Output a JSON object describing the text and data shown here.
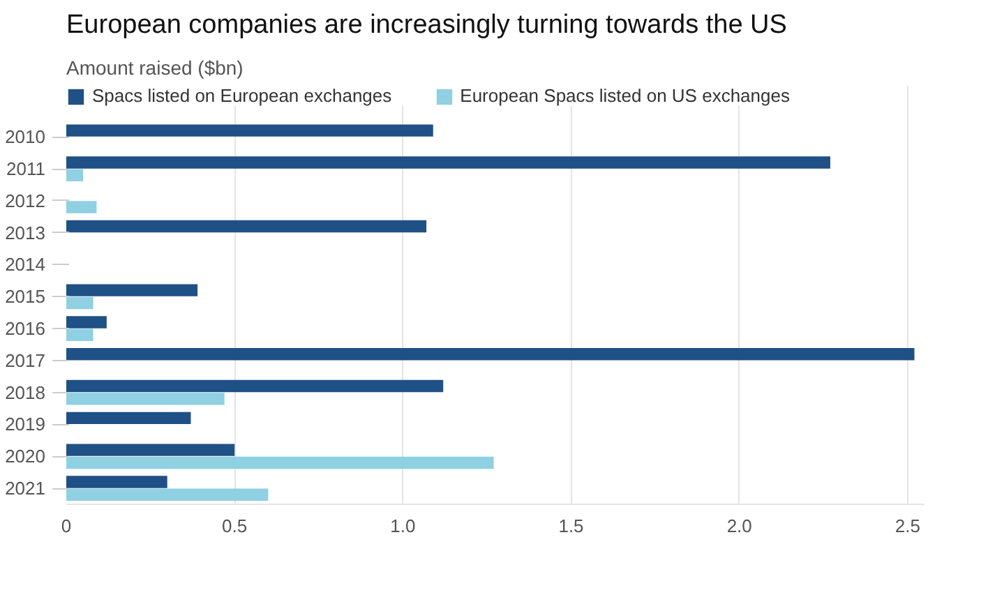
{
  "chart_data": {
    "type": "bar",
    "orientation": "horizontal",
    "title": "European companies are increasingly turning towards the US",
    "subtitle": "Amount raised ($bn)",
    "categories": [
      "2010",
      "2011",
      "2012",
      "2013",
      "2014",
      "2015",
      "2016",
      "2017",
      "2018",
      "2019",
      "2020",
      "2021"
    ],
    "series": [
      {
        "name": "Spacs listed on European exchanges",
        "color": "#1f5086",
        "values": [
          1.09,
          2.27,
          null,
          1.07,
          null,
          0.39,
          0.12,
          2.52,
          1.12,
          0.37,
          0.5,
          0.3
        ]
      },
      {
        "name": "European Spacs listed on US exchanges",
        "color": "#8fd0e3",
        "values": [
          null,
          0.05,
          0.09,
          null,
          null,
          0.08,
          0.08,
          null,
          0.47,
          null,
          1.27,
          0.6
        ]
      }
    ],
    "xlim": [
      0,
      2.55
    ],
    "xticks": [
      0,
      {
        "value": 0.5,
        "label": "0.5"
      },
      {
        "value": 1,
        "label": "1.0"
      },
      {
        "value": 1.5,
        "label": "1.5"
      },
      {
        "value": 2,
        "label": "2.0"
      },
      {
        "value": 2.5,
        "label": "2.5"
      }
    ],
    "grid": "x",
    "legend": "top left"
  }
}
